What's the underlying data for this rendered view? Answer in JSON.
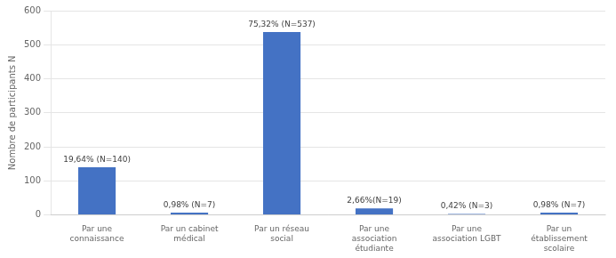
{
  "chart_data": {
    "type": "bar",
    "ylabel": "Nombre de participants N",
    "categories": [
      "Par une\nconnaissance",
      "Par un cabinet\nmédical",
      "Par un réseau\nsocial",
      "Par une\nassociation\nétudiante",
      "Par une\nassociation LGBT",
      "Par un\nétablissement\nscolaire"
    ],
    "values": [
      140,
      7,
      537,
      19,
      3,
      7
    ],
    "value_labels": [
      "19,64% (N=140)",
      "0,98% (N=7)",
      "75,32% (N=537)",
      "2,66%(N=19)",
      "0,42% (N=3)",
      "0,98% (N=7)"
    ],
    "color": "#4472C4",
    "ylim": [
      0,
      600
    ],
    "yticks": [
      0,
      100,
      200,
      300,
      400,
      500,
      600
    ],
    "grid": true
  }
}
